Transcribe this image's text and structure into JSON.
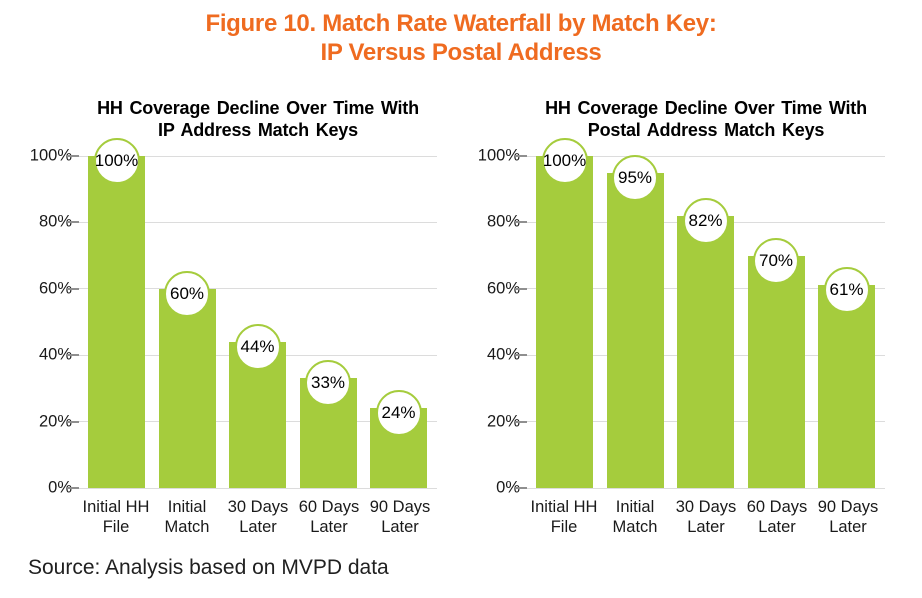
{
  "figure": {
    "title_line1": "Figure 10. Match Rate Waterfall by Match Key:",
    "title_line2": "IP Versus Postal Address"
  },
  "source_note": "Source: Analysis based on MVPD data",
  "colors": {
    "bar_green": "#a5cc3d",
    "title_orange": "#ef6b20",
    "gridline": "#dcdcdc",
    "axis_tick": "#8f8f8f"
  },
  "chart_data": [
    {
      "type": "bar",
      "title_line1": "HH Coverage Decline Over Time With",
      "title_line2": "IP Address Match Keys",
      "categories": [
        [
          "Initial HH",
          "File"
        ],
        [
          "Initial",
          "Match"
        ],
        [
          "30 Days",
          "Later"
        ],
        [
          "60 Days",
          "Later"
        ],
        [
          "90 Days",
          "Later"
        ]
      ],
      "values": [
        100,
        60,
        44,
        33,
        24
      ],
      "point_labels": [
        "100%",
        "60%",
        "44%",
        "33%",
        "24%"
      ],
      "y_ticks": [
        {
          "value": 0,
          "label": "0%"
        },
        {
          "value": 20,
          "label": "20%"
        },
        {
          "value": 40,
          "label": "40%"
        },
        {
          "value": 60,
          "label": "60%"
        },
        {
          "value": 80,
          "label": "80%"
        },
        {
          "value": 100,
          "label": "100%"
        }
      ],
      "ylim": [
        0,
        100
      ],
      "grid": true,
      "legend": "none"
    },
    {
      "type": "bar",
      "title_line1": "HH Coverage Decline Over Time With",
      "title_line2": "Postal Address Match Keys",
      "categories": [
        [
          "Initial HH",
          "File"
        ],
        [
          "Initial",
          "Match"
        ],
        [
          "30 Days",
          "Later"
        ],
        [
          "60 Days",
          "Later"
        ],
        [
          "90 Days",
          "Later"
        ]
      ],
      "values": [
        100,
        95,
        82,
        70,
        61
      ],
      "point_labels": [
        "100%",
        "95%",
        "82%",
        "70%",
        "61%"
      ],
      "y_ticks": [
        {
          "value": 0,
          "label": "0%"
        },
        {
          "value": 20,
          "label": "20%"
        },
        {
          "value": 40,
          "label": "40%"
        },
        {
          "value": 60,
          "label": "60%"
        },
        {
          "value": 80,
          "label": "80%"
        },
        {
          "value": 100,
          "label": "100%"
        }
      ],
      "ylim": [
        0,
        100
      ],
      "grid": true,
      "legend": "none"
    }
  ]
}
